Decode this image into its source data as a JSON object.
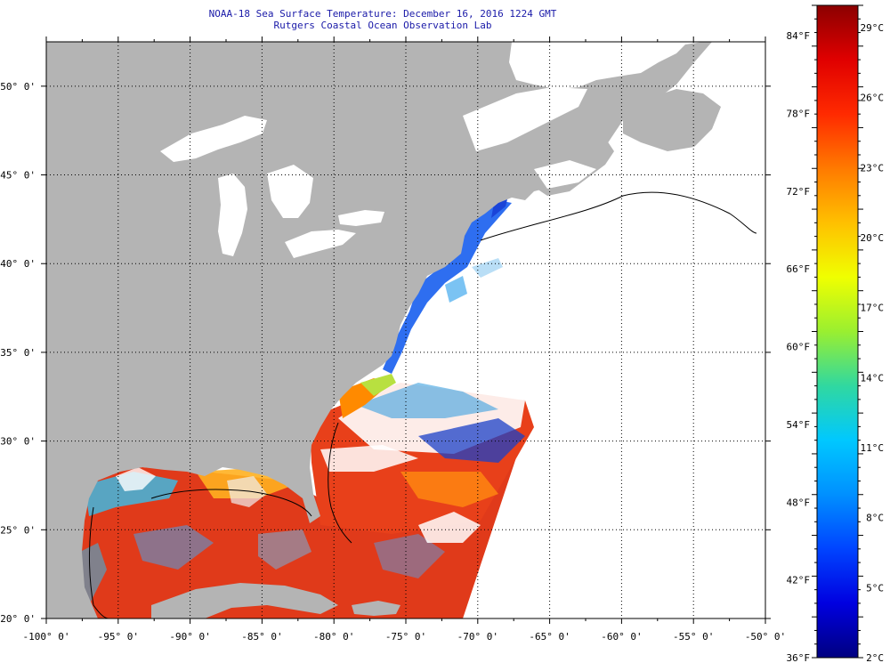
{
  "map": {
    "title": "NOAA-18 Sea Surface Temperature:  December 16, 2016 1224 GMT",
    "subtitle": "Rutgers Coastal Ocean Observation Lab",
    "lon_labels": [
      "-100° 0'",
      "-95° 0'",
      "-90° 0'",
      "-85° 0'",
      "-80° 0'",
      "-75° 0'",
      "-70° 0'",
      "-65° 0'",
      "-60° 0'",
      "-55° 0'",
      "-50° 0'"
    ],
    "lat_labels": [
      "50° 0'",
      "45° 0'",
      "40° 0'",
      "35° 0'",
      "30° 0'",
      "25° 0'",
      "20° 0'"
    ],
    "lon_range": [
      -100,
      -50
    ],
    "lat_range": [
      20,
      52.5
    ],
    "colors": {
      "land": "#b4b4b4",
      "no_data": "#ffffff",
      "graticule": "#000000"
    }
  },
  "colorbar": {
    "f_labels": [
      "84°F",
      "78°F",
      "72°F",
      "66°F",
      "60°F",
      "54°F",
      "48°F",
      "42°F",
      "36°F"
    ],
    "c_labels": [
      "29°C",
      "26°C",
      "23°C",
      "20°C",
      "17°C",
      "14°C",
      "11°C",
      "8°C",
      "5°C",
      "2°C"
    ],
    "gradient": [
      "#8b0000",
      "#e00000",
      "#ff2a00",
      "#ff7a00",
      "#ffc000",
      "#f0ff00",
      "#9aef30",
      "#30d8a0",
      "#00c8ff",
      "#0090ff",
      "#0044ff",
      "#0000e0",
      "#000080"
    ]
  }
}
